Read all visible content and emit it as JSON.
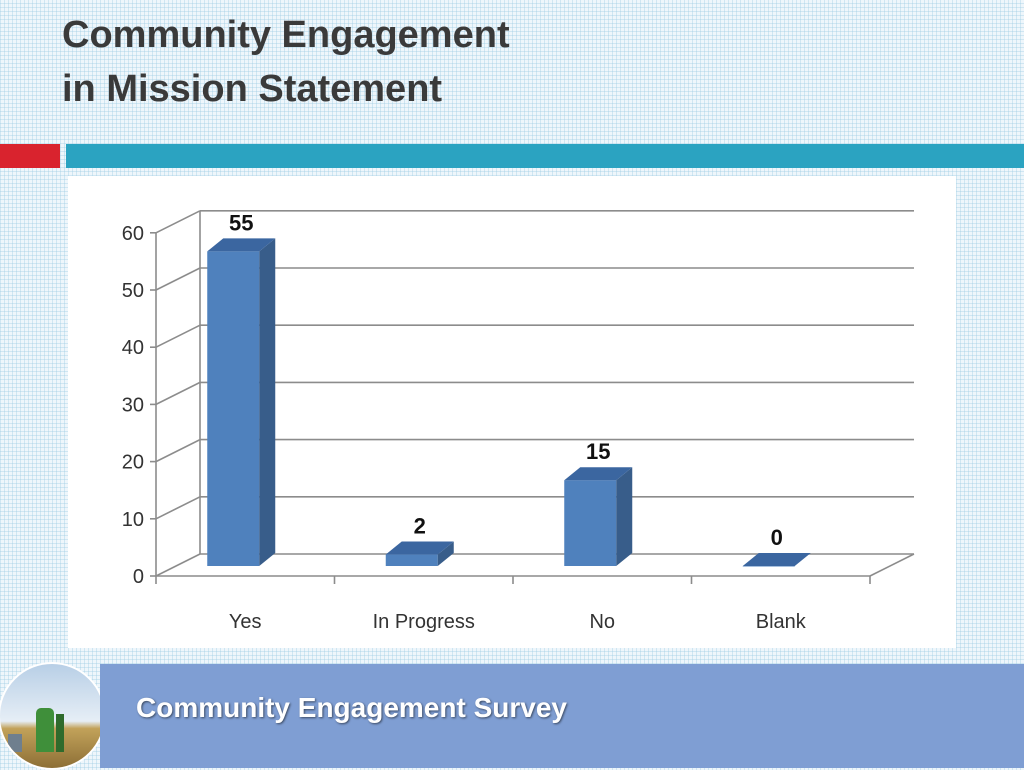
{
  "header": {
    "title_line1": "Community Engagement",
    "title_line2": "in Mission Statement"
  },
  "footer": {
    "text": "Community Engagement Survey"
  },
  "colors": {
    "accent_red": "#d9232e",
    "accent_teal": "#2ba3c1",
    "footer_band": "#7f9ed3",
    "bar_front": "#4f81bd",
    "bar_side": "#385d8a",
    "bar_top": "#3b66a0"
  },
  "chart_data": {
    "type": "bar",
    "style": "3d-column",
    "categories": [
      "Yes",
      "In Progress",
      "No",
      "Blank"
    ],
    "values": [
      55,
      2,
      15,
      0
    ],
    "data_labels": [
      "55",
      "2",
      "15",
      "0"
    ],
    "ylim": [
      0,
      60
    ],
    "yticks": [
      0,
      10,
      20,
      30,
      40,
      50,
      60
    ],
    "grid": true,
    "legend": "none"
  }
}
